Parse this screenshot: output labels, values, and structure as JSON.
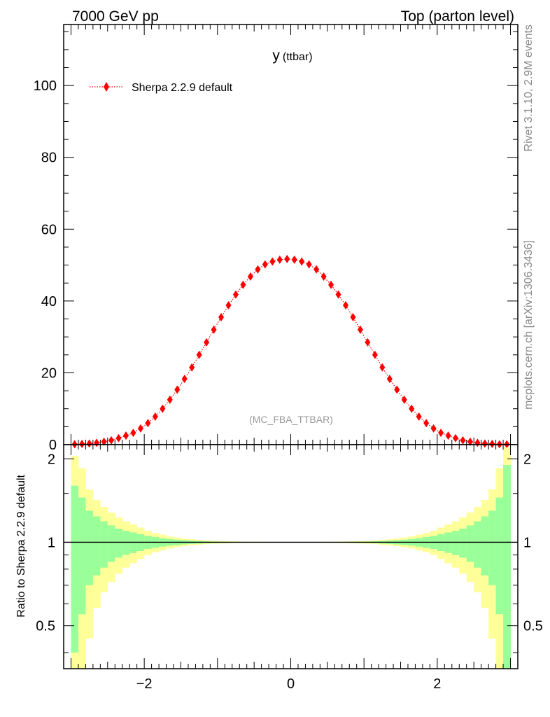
{
  "header": {
    "left": "7000 GeV pp",
    "right": "Top (parton level)"
  },
  "side": {
    "rivet": "Rivet 3.1.10,  2.9M events",
    "mcplots": "mcplots.cern.ch [arXiv:1306.3436]"
  },
  "chart_data": [
    {
      "type": "scatter",
      "title": "y",
      "title_sub": "(ttbar)",
      "watermark": "(MC_FBA_TTBAR)",
      "xlim": [
        -3.1,
        3.1
      ],
      "ylim": [
        0,
        117
      ],
      "y_ticks": [
        0,
        20,
        40,
        60,
        80,
        100
      ],
      "legend_position": "top-left",
      "series": [
        {
          "name": "Sherpa 2.2.9 default",
          "color": "#ff0000",
          "marker": "diamond",
          "line": "dotted",
          "x": [
            -2.95,
            -2.85,
            -2.75,
            -2.65,
            -2.55,
            -2.45,
            -2.35,
            -2.25,
            -2.15,
            -2.05,
            -1.95,
            -1.85,
            -1.75,
            -1.65,
            -1.55,
            -1.45,
            -1.35,
            -1.25,
            -1.15,
            -1.05,
            -0.95,
            -0.85,
            -0.75,
            -0.65,
            -0.55,
            -0.45,
            -0.35,
            -0.25,
            -0.15,
            -0.05,
            0.05,
            0.15,
            0.25,
            0.35,
            0.45,
            0.55,
            0.65,
            0.75,
            0.85,
            0.95,
            1.05,
            1.15,
            1.25,
            1.35,
            1.45,
            1.55,
            1.65,
            1.75,
            1.85,
            1.95,
            2.05,
            2.15,
            2.25,
            2.35,
            2.45,
            2.55,
            2.65,
            2.75,
            2.85,
            2.95
          ],
          "y": [
            0.1,
            0.2,
            0.3,
            0.5,
            0.8,
            1.2,
            1.8,
            2.5,
            3.3,
            4.5,
            6.0,
            7.8,
            10.0,
            12.5,
            15.3,
            18.3,
            21.5,
            25.0,
            28.5,
            32.0,
            35.5,
            38.8,
            41.8,
            44.5,
            46.8,
            48.8,
            50.2,
            51.0,
            51.5,
            51.7,
            51.5,
            51.0,
            50.2,
            48.8,
            46.8,
            44.5,
            41.8,
            38.8,
            35.5,
            32.0,
            28.5,
            25.0,
            21.5,
            18.3,
            15.3,
            12.5,
            10.0,
            7.8,
            6.0,
            4.5,
            3.3,
            2.5,
            1.8,
            1.2,
            0.8,
            0.5,
            0.3,
            0.2,
            0.1,
            0.1
          ]
        }
      ]
    },
    {
      "type": "area",
      "ylabel": "Ratio to Sherpa 2.2.9 default",
      "xlim": [
        -3.1,
        3.1
      ],
      "ylim": [
        0.35,
        2.25
      ],
      "yscale": "log",
      "x_ticks": [
        -2,
        0,
        2
      ],
      "x_tick_labels": [
        "−2",
        "0",
        "2"
      ],
      "y_ticks": [
        0.5,
        1,
        2
      ],
      "y_tick_labels": [
        "0.5",
        "1",
        "2"
      ],
      "reference": 1,
      "band_colors": {
        "outer": "#ffff99",
        "inner": "#99ff99"
      },
      "bins": [
        -3.0,
        -2.9,
        -2.8,
        -2.7,
        -2.6,
        -2.5,
        -2.4,
        -2.3,
        -2.2,
        -2.1,
        -2.0,
        -1.9,
        -1.8,
        -1.7,
        -1.6,
        -1.5,
        -1.4,
        -1.3,
        -1.2,
        -1.1,
        -1.0,
        -0.9,
        -0.8,
        -0.7,
        -0.6,
        -0.5,
        -0.4,
        -0.3,
        -0.2,
        -0.1,
        0.0,
        0.1,
        0.2,
        0.3,
        0.4,
        0.5,
        0.6,
        0.7,
        0.8,
        0.9,
        1.0,
        1.1,
        1.2,
        1.3,
        1.4,
        1.5,
        1.6,
        1.7,
        1.8,
        1.9,
        2.0,
        2.1,
        2.2,
        2.3,
        2.4,
        2.5,
        2.6,
        2.7,
        2.8,
        2.9,
        3.0
      ],
      "outer_err": [
        1.05,
        0.85,
        0.55,
        0.42,
        0.34,
        0.28,
        0.23,
        0.19,
        0.16,
        0.13,
        0.1,
        0.08,
        0.065,
        0.05,
        0.04,
        0.032,
        0.025,
        0.02,
        0.015,
        0.012,
        0.01,
        0.008,
        0.006,
        0.005,
        0.004,
        0.004,
        0.003,
        0.003,
        0.003,
        0.003,
        0.003,
        0.003,
        0.003,
        0.003,
        0.004,
        0.004,
        0.005,
        0.006,
        0.008,
        0.01,
        0.012,
        0.015,
        0.02,
        0.025,
        0.032,
        0.04,
        0.05,
        0.065,
        0.08,
        0.1,
        0.13,
        0.16,
        0.19,
        0.23,
        0.28,
        0.34,
        0.42,
        0.55,
        0.85,
        1.2
      ],
      "inner_err": [
        0.6,
        0.45,
        0.3,
        0.24,
        0.19,
        0.15,
        0.12,
        0.1,
        0.085,
        0.07,
        0.055,
        0.045,
        0.035,
        0.028,
        0.022,
        0.018,
        0.014,
        0.011,
        0.008,
        0.006,
        0.005,
        0.004,
        0.003,
        0.003,
        0.002,
        0.002,
        0.002,
        0.002,
        0.002,
        0.002,
        0.002,
        0.002,
        0.002,
        0.002,
        0.002,
        0.002,
        0.003,
        0.003,
        0.004,
        0.005,
        0.006,
        0.008,
        0.011,
        0.014,
        0.018,
        0.022,
        0.028,
        0.035,
        0.045,
        0.055,
        0.07,
        0.085,
        0.1,
        0.12,
        0.15,
        0.19,
        0.24,
        0.3,
        0.45,
        0.9
      ]
    }
  ]
}
